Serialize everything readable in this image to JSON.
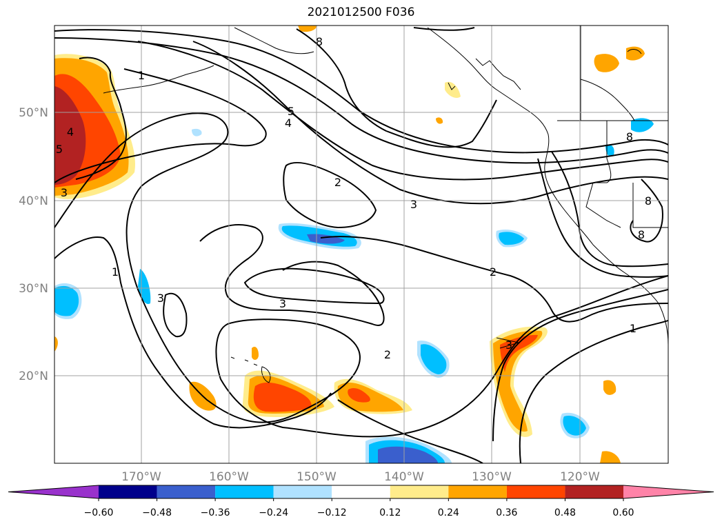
{
  "title": "2021012500 F036",
  "map": {
    "lat_labels": [
      "50°N",
      "40°N",
      "30°N",
      "20°N"
    ],
    "lon_labels": [
      "170°W",
      "160°W",
      "150°W",
      "140°W",
      "130°W",
      "120°W"
    ],
    "contour_labels": [
      "1",
      "8",
      "5",
      "4",
      "2",
      "3",
      "1",
      "3",
      "2",
      "3",
      "2",
      "3",
      "1",
      "4",
      "5",
      "3",
      "8",
      "8",
      "8"
    ],
    "grid_color": "#a0a0a0"
  },
  "colorbar": {
    "tick_labels": [
      "−0.60",
      "−0.48",
      "−0.36",
      "−0.24",
      "−0.12",
      "0.12",
      "0.24",
      "0.36",
      "0.48",
      "0.60"
    ],
    "colors": [
      "#9932cc",
      "#00008b",
      "#3a5fcd",
      "#00bfff",
      "#b0e2ff",
      "#ffffff",
      "#ffec8b",
      "#ffa500",
      "#ff4500",
      "#b22222",
      "#ff83a8"
    ]
  }
}
